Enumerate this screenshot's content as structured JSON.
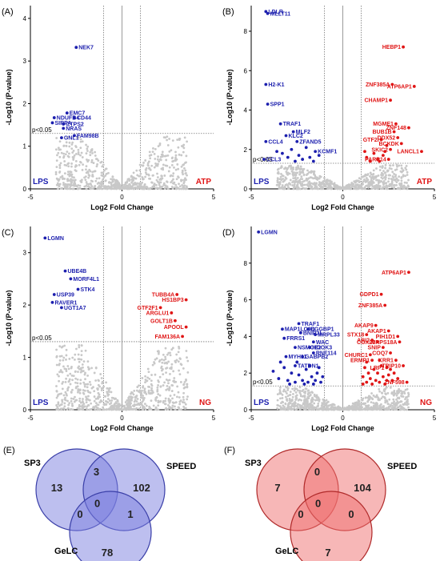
{
  "chart_data": [
    {
      "id": "A",
      "type": "scatter",
      "panel_label": "(A)",
      "xlabel": "Log2 Fold Change",
      "ylabel": "-Log10 (P-value)",
      "xlim": [
        -5,
        5
      ],
      "ylim": [
        0,
        4.3
      ],
      "xticks": [
        -5,
        0,
        5
      ],
      "yticks": [
        0,
        1,
        2,
        3,
        4
      ],
      "threshold_label": "p<0.05",
      "threshold_y": 1.3,
      "fc_cutoffs": [
        -1,
        1
      ],
      "left_condition": "LPS",
      "right_condition": "ATP",
      "left_points": [
        {
          "x": -2.5,
          "y": 3.32,
          "label": "NEK7"
        },
        {
          "x": -3.0,
          "y": 1.78,
          "label": "EMC7"
        },
        {
          "x": -3.7,
          "y": 1.67,
          "label": "NDUFB4"
        },
        {
          "x": -2.6,
          "y": 1.67,
          "label": "CD44"
        },
        {
          "x": -3.8,
          "y": 1.55,
          "label": "SIRPA"
        },
        {
          "x": -3.2,
          "y": 1.52,
          "label": "CTPS2"
        },
        {
          "x": -3.2,
          "y": 1.42,
          "label": "NRAS"
        },
        {
          "x": -2.6,
          "y": 1.25,
          "label": "FAM98B"
        },
        {
          "x": -3.3,
          "y": 1.2,
          "label": "GNL1"
        }
      ],
      "right_points": []
    },
    {
      "id": "B",
      "type": "scatter",
      "panel_label": "(B)",
      "xlabel": "Log2 Fold Change",
      "ylabel": "-Log10 (P-value)",
      "xlim": [
        -5,
        5
      ],
      "ylim": [
        0,
        9.3
      ],
      "xticks": [
        -5,
        0,
        5
      ],
      "yticks": [
        0,
        2,
        4,
        6,
        8
      ],
      "threshold_label": "p<0.05",
      "threshold_y": 1.3,
      "fc_cutoffs": [
        -1,
        1
      ],
      "left_condition": "LPS",
      "right_condition": "ATP",
      "left_points": [
        {
          "x": -4.2,
          "y": 9.0,
          "label": "LDLR"
        },
        {
          "x": -4.1,
          "y": 8.9,
          "label": "MLLT11"
        },
        {
          "x": -4.2,
          "y": 5.3,
          "label": "H2-K1"
        },
        {
          "x": -4.1,
          "y": 4.3,
          "label": "SPP1"
        },
        {
          "x": -3.4,
          "y": 3.3,
          "label": "TRAF1"
        },
        {
          "x": -2.7,
          "y": 2.9,
          "label": "MLF2"
        },
        {
          "x": -3.1,
          "y": 2.7,
          "label": "KLC2"
        },
        {
          "x": -4.2,
          "y": 2.4,
          "label": "CCL4"
        },
        {
          "x": -2.5,
          "y": 2.4,
          "label": "ZFAND5"
        },
        {
          "x": -1.5,
          "y": 1.9,
          "label": "KCMF1"
        },
        {
          "x": -4.3,
          "y": 1.5,
          "label": "CCL3"
        },
        {
          "x": -3.3,
          "y": 1.8,
          "label": ""
        },
        {
          "x": -3.0,
          "y": 1.6,
          "label": ""
        },
        {
          "x": -2.8,
          "y": 2.0,
          "label": ""
        },
        {
          "x": -2.4,
          "y": 1.7,
          "label": ""
        },
        {
          "x": -2.2,
          "y": 1.5,
          "label": ""
        },
        {
          "x": -2.0,
          "y": 2.1,
          "label": ""
        },
        {
          "x": -1.8,
          "y": 1.6,
          "label": ""
        },
        {
          "x": -1.6,
          "y": 1.4,
          "label": ""
        },
        {
          "x": -1.3,
          "y": 1.7,
          "label": ""
        },
        {
          "x": -3.6,
          "y": 1.9,
          "label": ""
        },
        {
          "x": -2.6,
          "y": 1.4,
          "label": ""
        }
      ],
      "right_points": [
        {
          "x": 3.3,
          "y": 7.2,
          "label": "HEBP1"
        },
        {
          "x": 3.9,
          "y": 5.2,
          "label": "ATP6AP1"
        },
        {
          "x": 2.7,
          "y": 5.3,
          "label": "ZNF385A"
        },
        {
          "x": 2.6,
          "y": 4.5,
          "label": "CHAMP1"
        },
        {
          "x": 2.9,
          "y": 3.3,
          "label": "MGME1"
        },
        {
          "x": 3.6,
          "y": 3.1,
          "label": "ZNF148"
        },
        {
          "x": 2.8,
          "y": 2.9,
          "label": "BUB1B"
        },
        {
          "x": 3.0,
          "y": 2.6,
          "label": "DDX52"
        },
        {
          "x": 2.1,
          "y": 2.5,
          "label": "GTF2I"
        },
        {
          "x": 3.2,
          "y": 2.3,
          "label": "BCKDK"
        },
        {
          "x": 2.6,
          "y": 2.0,
          "label": "SKIC2"
        },
        {
          "x": 4.3,
          "y": 1.9,
          "label": "LANCL1"
        },
        {
          "x": 2.5,
          "y": 1.5,
          "label": "PARP14"
        },
        {
          "x": 1.3,
          "y": 1.6,
          "label": ""
        },
        {
          "x": 1.5,
          "y": 1.4,
          "label": ""
        },
        {
          "x": 1.7,
          "y": 1.8,
          "label": ""
        },
        {
          "x": 1.9,
          "y": 1.5,
          "label": ""
        },
        {
          "x": 2.2,
          "y": 1.7,
          "label": ""
        },
        {
          "x": 2.4,
          "y": 2.2,
          "label": ""
        },
        {
          "x": 1.2,
          "y": 1.9,
          "label": ""
        },
        {
          "x": 2.0,
          "y": 1.4,
          "label": ""
        },
        {
          "x": 2.3,
          "y": 1.9,
          "label": ""
        }
      ]
    },
    {
      "id": "C",
      "type": "scatter",
      "panel_label": "(C)",
      "xlabel": "Log2 Fold Change",
      "ylabel": "-Log10 (P-value)",
      "xlim": [
        -5,
        5
      ],
      "ylim": [
        0,
        3.5
      ],
      "xticks": [
        -5,
        0,
        5
      ],
      "yticks": [
        0,
        1,
        2,
        3
      ],
      "threshold_label": "p<0.05",
      "threshold_y": 1.3,
      "fc_cutoffs": [
        -1,
        1
      ],
      "left_condition": "LPS",
      "right_condition": "NG",
      "left_points": [
        {
          "x": -4.2,
          "y": 3.28,
          "label": "LGMN"
        },
        {
          "x": -3.1,
          "y": 2.65,
          "label": "UBE4B"
        },
        {
          "x": -2.8,
          "y": 2.5,
          "label": "MORF4L1"
        },
        {
          "x": -2.4,
          "y": 2.3,
          "label": "STK4"
        },
        {
          "x": -3.7,
          "y": 2.2,
          "label": "USP39"
        },
        {
          "x": -3.8,
          "y": 2.05,
          "label": "RAVER1"
        },
        {
          "x": -3.3,
          "y": 1.95,
          "label": "UGT1A7"
        }
      ],
      "right_points": [
        {
          "x": 3.0,
          "y": 2.2,
          "label": "TUBB4A"
        },
        {
          "x": 3.5,
          "y": 2.1,
          "label": "HS1BP3"
        },
        {
          "x": 2.1,
          "y": 1.95,
          "label": "GTF2F1"
        },
        {
          "x": 2.7,
          "y": 1.85,
          "label": "ARGLU1"
        },
        {
          "x": 2.9,
          "y": 1.7,
          "label": "GOLT1B"
        },
        {
          "x": 3.5,
          "y": 1.58,
          "label": "APOOL"
        },
        {
          "x": 3.3,
          "y": 1.4,
          "label": "FAM136A"
        }
      ]
    },
    {
      "id": "D",
      "type": "scatter",
      "panel_label": "(D)",
      "xlabel": "Log2 Fold Change",
      "ylabel": "-Log10 (P-value)",
      "xlim": [
        -5,
        5
      ],
      "ylim": [
        0,
        10
      ],
      "xticks": [
        -5,
        0,
        5
      ],
      "yticks": [
        0,
        2,
        4,
        6,
        8
      ],
      "threshold_label": "p<0.05",
      "threshold_y": 1.3,
      "fc_cutoffs": [
        -1,
        1
      ],
      "left_condition": "LPS",
      "right_condition": "NG",
      "left_points": [
        {
          "x": -4.6,
          "y": 9.7,
          "label": "LGMN"
        },
        {
          "x": -2.4,
          "y": 4.7,
          "label": "TRAF1"
        },
        {
          "x": -3.3,
          "y": 4.4,
          "label": "MAP1LC3B"
        },
        {
          "x": -1.9,
          "y": 4.4,
          "label": "CGGBP1"
        },
        {
          "x": -2.3,
          "y": 4.2,
          "label": "BNIP3L"
        },
        {
          "x": -1.5,
          "y": 4.1,
          "label": "MRPL33"
        },
        {
          "x": -3.2,
          "y": 3.9,
          "label": "FRRS1"
        },
        {
          "x": -1.6,
          "y": 3.7,
          "label": "WAC"
        },
        {
          "x": -1.8,
          "y": 3.4,
          "label": "HOOK3"
        },
        {
          "x": -2.6,
          "y": 3.4,
          "label": "NSMCE2"
        },
        {
          "x": -1.6,
          "y": 3.1,
          "label": "RNF114"
        },
        {
          "x": -3.1,
          "y": 2.9,
          "label": "MYH11"
        },
        {
          "x": -2.2,
          "y": 2.9,
          "label": "GABPB2"
        },
        {
          "x": -2.6,
          "y": 2.4,
          "label": "TATDN1"
        },
        {
          "x": -3.8,
          "y": 2.1,
          "label": ""
        },
        {
          "x": -3.5,
          "y": 1.7,
          "label": ""
        },
        {
          "x": -3.2,
          "y": 2.3,
          "label": ""
        },
        {
          "x": -3.0,
          "y": 1.6,
          "label": ""
        },
        {
          "x": -2.8,
          "y": 2.0,
          "label": ""
        },
        {
          "x": -2.6,
          "y": 1.5,
          "label": ""
        },
        {
          "x": -2.4,
          "y": 1.9,
          "label": ""
        },
        {
          "x": -2.2,
          "y": 1.6,
          "label": ""
        },
        {
          "x": -2.0,
          "y": 2.2,
          "label": ""
        },
        {
          "x": -1.9,
          "y": 1.5,
          "label": ""
        },
        {
          "x": -1.7,
          "y": 1.8,
          "label": ""
        },
        {
          "x": -1.5,
          "y": 1.6,
          "label": ""
        },
        {
          "x": -1.4,
          "y": 2.0,
          "label": ""
        },
        {
          "x": -1.2,
          "y": 1.5,
          "label": ""
        },
        {
          "x": -1.1,
          "y": 1.8,
          "label": ""
        },
        {
          "x": -2.9,
          "y": 1.4,
          "label": ""
        },
        {
          "x": -2.5,
          "y": 2.6,
          "label": ""
        },
        {
          "x": -1.8,
          "y": 2.4,
          "label": ""
        },
        {
          "x": -1.3,
          "y": 2.3,
          "label": ""
        },
        {
          "x": -3.4,
          "y": 2.6,
          "label": ""
        },
        {
          "x": -2.1,
          "y": 1.4,
          "label": ""
        },
        {
          "x": -1.6,
          "y": 1.4,
          "label": ""
        }
      ],
      "right_points": [
        {
          "x": 3.6,
          "y": 7.5,
          "label": "ATP6AP1"
        },
        {
          "x": 2.1,
          "y": 6.3,
          "label": "GDPD1"
        },
        {
          "x": 2.3,
          "y": 5.7,
          "label": "ZNF385A"
        },
        {
          "x": 1.8,
          "y": 4.6,
          "label": "AKAP9"
        },
        {
          "x": 2.5,
          "y": 4.3,
          "label": "AKAP1"
        },
        {
          "x": 1.3,
          "y": 4.1,
          "label": "STX18"
        },
        {
          "x": 3.0,
          "y": 4.0,
          "label": "PIH1D1"
        },
        {
          "x": 1.6,
          "y": 3.8,
          "label": "ABI2"
        },
        {
          "x": 1.9,
          "y": 3.7,
          "label": "COX20"
        },
        {
          "x": 3.1,
          "y": 3.7,
          "label": "MRPS18A"
        },
        {
          "x": 2.2,
          "y": 3.4,
          "label": "SNIP"
        },
        {
          "x": 2.6,
          "y": 3.1,
          "label": "COQ7"
        },
        {
          "x": 1.5,
          "y": 3.0,
          "label": "CHURC1"
        },
        {
          "x": 1.6,
          "y": 2.7,
          "label": "ERMP1"
        },
        {
          "x": 2.9,
          "y": 2.7,
          "label": "KRR1"
        },
        {
          "x": 3.3,
          "y": 2.4,
          "label": "TRIP10"
        },
        {
          "x": 2.4,
          "y": 2.3,
          "label": "LRP1"
        },
        {
          "x": 3.5,
          "y": 1.5,
          "label": "ZNF598"
        },
        {
          "x": 1.1,
          "y": 1.8,
          "label": ""
        },
        {
          "x": 1.2,
          "y": 2.3,
          "label": ""
        },
        {
          "x": 1.3,
          "y": 1.5,
          "label": ""
        },
        {
          "x": 1.4,
          "y": 2.0,
          "label": ""
        },
        {
          "x": 1.5,
          "y": 1.7,
          "label": ""
        },
        {
          "x": 1.7,
          "y": 2.2,
          "label": ""
        },
        {
          "x": 1.8,
          "y": 1.6,
          "label": ""
        },
        {
          "x": 1.9,
          "y": 2.0,
          "label": ""
        },
        {
          "x": 2.0,
          "y": 1.5,
          "label": ""
        },
        {
          "x": 2.1,
          "y": 2.4,
          "label": ""
        },
        {
          "x": 2.2,
          "y": 1.8,
          "label": ""
        },
        {
          "x": 2.3,
          "y": 1.4,
          "label": ""
        },
        {
          "x": 2.5,
          "y": 1.9,
          "label": ""
        },
        {
          "x": 2.6,
          "y": 2.2,
          "label": ""
        },
        {
          "x": 2.7,
          "y": 1.6,
          "label": ""
        },
        {
          "x": 2.8,
          "y": 2.0,
          "label": ""
        },
        {
          "x": 3.0,
          "y": 1.7,
          "label": ""
        },
        {
          "x": 1.6,
          "y": 1.4,
          "label": ""
        },
        {
          "x": 2.0,
          "y": 2.7,
          "label": ""
        },
        {
          "x": 1.3,
          "y": 2.6,
          "label": ""
        },
        {
          "x": 2.4,
          "y": 1.6,
          "label": ""
        },
        {
          "x": 1.1,
          "y": 1.4,
          "label": ""
        }
      ]
    }
  ],
  "venns": [
    {
      "id": "E",
      "panel_label": "(E)",
      "fill_color": "#7b7fe0",
      "stroke_color": "#3a3fa8",
      "sets": [
        "SP3",
        "SPEED",
        "GeLC"
      ],
      "counts": {
        "sp3_only": "13",
        "sp3_speed": "3",
        "speed_only": "102",
        "sp3_gelc": "0",
        "all": "0",
        "speed_gelc": "1",
        "gelc_only": "78"
      }
    },
    {
      "id": "F",
      "panel_label": "(F)",
      "fill_color": "#f07070",
      "stroke_color": "#b02a2a",
      "sets": [
        "SP3",
        "SPEED",
        "GeLC"
      ],
      "counts": {
        "sp3_only": "7",
        "sp3_speed": "0",
        "speed_only": "104",
        "sp3_gelc": "0",
        "all": "0",
        "speed_gelc": "0",
        "gelc_only": "7"
      }
    }
  ],
  "colors": {
    "down": "#1c1fae",
    "up": "#e01515",
    "ns": "#c8c8c8",
    "axis": "#000000"
  }
}
